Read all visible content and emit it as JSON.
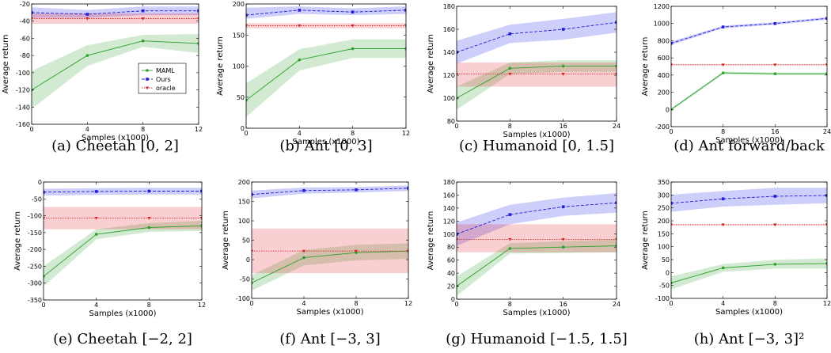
{
  "figure": {
    "legend": {
      "entries": [
        {
          "label": "MAML",
          "color": "#2ca02c",
          "marker": "circle",
          "line": "solid"
        },
        {
          "label": "Ours",
          "color": "#1f1fd6",
          "marker": "square",
          "line": "dashed"
        },
        {
          "label": "oracle",
          "color": "#d62728",
          "marker": "triangle-down",
          "line": "dotted"
        }
      ],
      "placement": "lower-right of panel a"
    }
  },
  "chart_data": [
    {
      "type": "line",
      "caption": "(a) Cheetah [0, 2]",
      "xlabel": "Samples (x1000)",
      "ylabel": "Average return",
      "xlim": [
        0,
        12
      ],
      "ylim": [
        -160,
        -20
      ],
      "xticks": [
        "0",
        "4",
        "8",
        "12"
      ],
      "yticks": [
        "-160",
        "-140",
        "-120",
        "-100",
        "-80",
        "-60",
        "-40",
        "-20"
      ],
      "grid": false,
      "show_legend": true,
      "series": [
        {
          "name": "MAML",
          "x": [
            0,
            4,
            8,
            12
          ],
          "y": [
            -120,
            -80,
            -63,
            -66
          ],
          "lower": [
            -142,
            -92,
            -70,
            -77
          ],
          "upper": [
            -98,
            -68,
            -56,
            -55
          ]
        },
        {
          "name": "Ours",
          "x": [
            0,
            4,
            8,
            12
          ],
          "y": [
            -30,
            -32,
            -28,
            -28
          ],
          "lower": [
            -36,
            -36,
            -33,
            -33
          ],
          "upper": [
            -24,
            -27,
            -23,
            -23
          ]
        },
        {
          "name": "oracle",
          "x": [
            0,
            4,
            8,
            12
          ],
          "y": [
            -37,
            -37,
            -37,
            -37
          ],
          "lower": [
            -43,
            -43,
            -43,
            -43
          ],
          "upper": [
            -31,
            -31,
            -31,
            -31
          ]
        }
      ]
    },
    {
      "type": "line",
      "caption": "(b) Ant [0, 3]",
      "xlabel": "Samples (x1000)",
      "ylabel": "Average return",
      "xlim": [
        0,
        12
      ],
      "ylim": [
        0,
        200
      ],
      "xticks": [
        "0",
        "4",
        "8",
        "12"
      ],
      "yticks": [
        "0",
        "50",
        "100",
        "150",
        "200"
      ],
      "grid": false,
      "show_legend": false,
      "series": [
        {
          "name": "MAML",
          "x": [
            0,
            4,
            8,
            12
          ],
          "y": [
            45,
            110,
            128,
            128
          ],
          "lower": [
            18,
            93,
            113,
            113
          ],
          "upper": [
            72,
            127,
            143,
            143
          ]
        },
        {
          "name": "Ours",
          "x": [
            0,
            4,
            8,
            12
          ],
          "y": [
            182,
            190,
            187,
            190
          ],
          "lower": [
            176,
            184,
            182,
            184
          ],
          "upper": [
            194,
            196,
            193,
            196
          ]
        },
        {
          "name": "oracle",
          "x": [
            0,
            4,
            8,
            12
          ],
          "y": [
            165,
            165,
            165,
            165
          ],
          "lower": [
            161,
            161,
            161,
            161
          ],
          "upper": [
            169,
            169,
            169,
            169
          ]
        }
      ]
    },
    {
      "type": "line",
      "caption": "(c) Humanoid [0, 1.5]",
      "xlabel": "Samples (x1000)",
      "ylabel": "Average return",
      "xlim": [
        0,
        24
      ],
      "ylim": [
        80,
        180
      ],
      "xticks": [
        "0",
        "8",
        "16",
        "24"
      ],
      "yticks": [
        "80",
        "100",
        "120",
        "140",
        "160",
        "180"
      ],
      "grid": false,
      "show_legend": false,
      "series": [
        {
          "name": "MAML",
          "x": [
            0,
            8,
            16,
            24
          ],
          "y": [
            100,
            126,
            128,
            128
          ],
          "lower": [
            90,
            121,
            123,
            123
          ],
          "upper": [
            110,
            131,
            133,
            133
          ]
        },
        {
          "name": "Ours",
          "x": [
            0,
            8,
            16,
            24
          ],
          "y": [
            140,
            156,
            160,
            166
          ],
          "lower": [
            130,
            148,
            151,
            157
          ],
          "upper": [
            150,
            164,
            169,
            175
          ]
        },
        {
          "name": "oracle",
          "x": [
            0,
            8,
            16,
            24
          ],
          "y": [
            121,
            121,
            121,
            121
          ],
          "lower": [
            110,
            110,
            110,
            110
          ],
          "upper": [
            131,
            131,
            131,
            131
          ]
        }
      ]
    },
    {
      "type": "line",
      "caption": "(d) Ant forward/back",
      "xlabel": "Samples (x1000)",
      "ylabel": "Average return",
      "xlim": [
        0,
        24
      ],
      "ylim": [
        -200,
        1200
      ],
      "xticks": [
        "0",
        "8",
        "16",
        "24"
      ],
      "yticks": [
        "-200",
        "0",
        "200",
        "400",
        "600",
        "800",
        "1000",
        "1200"
      ],
      "grid": false,
      "show_legend": false,
      "series": [
        {
          "name": "MAML",
          "x": [
            0,
            8,
            16,
            24
          ],
          "y": [
            0,
            425,
            415,
            415
          ],
          "lower": [
            -15,
            410,
            400,
            400
          ],
          "upper": [
            15,
            440,
            430,
            430
          ]
        },
        {
          "name": "Ours",
          "x": [
            0,
            8,
            16,
            24
          ],
          "y": [
            770,
            960,
            1000,
            1060
          ],
          "lower": [
            750,
            945,
            985,
            1045
          ],
          "upper": [
            790,
            975,
            1015,
            1075
          ]
        },
        {
          "name": "oracle",
          "x": [
            0,
            8,
            16,
            24
          ],
          "y": [
            520,
            520,
            520,
            520
          ],
          "lower": [
            515,
            515,
            515,
            515
          ],
          "upper": [
            525,
            525,
            525,
            525
          ]
        }
      ]
    },
    {
      "type": "line",
      "caption": "(e) Cheetah [−2, 2]",
      "xlabel": "Samples (x1000)",
      "ylabel": "Average return",
      "xlim": [
        0,
        12
      ],
      "ylim": [
        -350,
        0
      ],
      "xticks": [
        "0",
        "4",
        "8",
        "12"
      ],
      "yticks": [
        "-350",
        "-300",
        "-250",
        "-200",
        "-150",
        "-100",
        "-50",
        "0"
      ],
      "grid": false,
      "show_legend": false,
      "series": [
        {
          "name": "MAML",
          "x": [
            0,
            4,
            8,
            12
          ],
          "y": [
            -280,
            -155,
            -135,
            -130
          ],
          "lower": [
            -310,
            -170,
            -148,
            -145
          ],
          "upper": [
            -250,
            -140,
            -122,
            -115
          ]
        },
        {
          "name": "Ours",
          "x": [
            0,
            4,
            8,
            12
          ],
          "y": [
            -30,
            -28,
            -27,
            -27
          ],
          "lower": [
            -40,
            -38,
            -37,
            -37
          ],
          "upper": [
            -20,
            -18,
            -17,
            -17
          ]
        },
        {
          "name": "oracle",
          "x": [
            0,
            4,
            8,
            12
          ],
          "y": [
            -107,
            -107,
            -107,
            -107
          ],
          "lower": [
            -140,
            -140,
            -140,
            -140
          ],
          "upper": [
            -74,
            -74,
            -74,
            -74
          ]
        }
      ]
    },
    {
      "type": "line",
      "caption": "(f) Ant [−3, 3]",
      "xlabel": "Samples (x1000)",
      "ylabel": "Average return",
      "xlim": [
        0,
        12
      ],
      "ylim": [
        -100,
        200
      ],
      "xticks": [
        "0",
        "4",
        "8",
        "12"
      ],
      "yticks": [
        "-100",
        "-50",
        "0",
        "50",
        "100",
        "150",
        "200"
      ],
      "grid": false,
      "show_legend": false,
      "series": [
        {
          "name": "MAML",
          "x": [
            0,
            4,
            8,
            12
          ],
          "y": [
            -60,
            5,
            18,
            22
          ],
          "lower": [
            -80,
            -15,
            -2,
            2
          ],
          "upper": [
            -40,
            25,
            38,
            42
          ]
        },
        {
          "name": "Ours",
          "x": [
            0,
            4,
            8,
            12
          ],
          "y": [
            168,
            178,
            180,
            184
          ],
          "lower": [
            158,
            170,
            173,
            177
          ],
          "upper": [
            178,
            186,
            187,
            191
          ]
        },
        {
          "name": "oracle",
          "x": [
            0,
            4,
            8,
            12
          ],
          "y": [
            22,
            22,
            22,
            22
          ],
          "lower": [
            -35,
            -35,
            -35,
            -35
          ],
          "upper": [
            80,
            80,
            80,
            80
          ]
        }
      ]
    },
    {
      "type": "line",
      "caption": "(g) Humanoid [−1.5, 1.5]",
      "xlabel": "Samples (x1000)",
      "ylabel": "Average return",
      "xlim": [
        0,
        24
      ],
      "ylim": [
        0,
        180
      ],
      "xticks": [
        "0",
        "8",
        "16",
        "24"
      ],
      "yticks": [
        "0",
        "20",
        "40",
        "60",
        "80",
        "100",
        "120",
        "140",
        "160",
        "180"
      ],
      "grid": false,
      "show_legend": false,
      "series": [
        {
          "name": "MAML",
          "x": [
            0,
            8,
            16,
            24
          ],
          "y": [
            20,
            78,
            80,
            82
          ],
          "lower": [
            5,
            70,
            71,
            72
          ],
          "upper": [
            35,
            86,
            89,
            92
          ]
        },
        {
          "name": "Ours",
          "x": [
            0,
            8,
            16,
            24
          ],
          "y": [
            100,
            130,
            142,
            148
          ],
          "lower": [
            82,
            115,
            128,
            133
          ],
          "upper": [
            118,
            145,
            156,
            163
          ]
        },
        {
          "name": "oracle",
          "x": [
            0,
            8,
            16,
            24
          ],
          "y": [
            92,
            92,
            92,
            92
          ],
          "lower": [
            72,
            72,
            72,
            72
          ],
          "upper": [
            115,
            115,
            115,
            115
          ]
        }
      ]
    },
    {
      "type": "line",
      "caption": "(h) Ant [−3, 3]²",
      "xlabel": "Samples (x1000)",
      "ylabel": "Average return",
      "xlim": [
        0,
        12
      ],
      "ylim": [
        -100,
        350
      ],
      "xticks": [
        "0",
        "4",
        "8",
        "12"
      ],
      "yticks": [
        "-100",
        "-50",
        "0",
        "50",
        "100",
        "150",
        "200",
        "250",
        "300",
        "350"
      ],
      "grid": false,
      "show_legend": false,
      "series": [
        {
          "name": "MAML",
          "x": [
            0,
            4,
            8,
            12
          ],
          "y": [
            -40,
            18,
            32,
            35
          ],
          "lower": [
            -65,
            3,
            15,
            15
          ],
          "upper": [
            -15,
            33,
            49,
            55
          ]
        },
        {
          "name": "Ours",
          "x": [
            0,
            4,
            8,
            12
          ],
          "y": [
            268,
            285,
            295,
            298
          ],
          "lower": [
            235,
            255,
            262,
            268
          ],
          "upper": [
            301,
            315,
            328,
            328
          ]
        },
        {
          "name": "oracle",
          "x": [
            0,
            4,
            8,
            12
          ],
          "y": [
            185,
            185,
            185,
            185
          ],
          "lower": [
            183,
            183,
            183,
            183
          ],
          "upper": [
            187,
            187,
            187,
            187
          ]
        }
      ]
    }
  ]
}
